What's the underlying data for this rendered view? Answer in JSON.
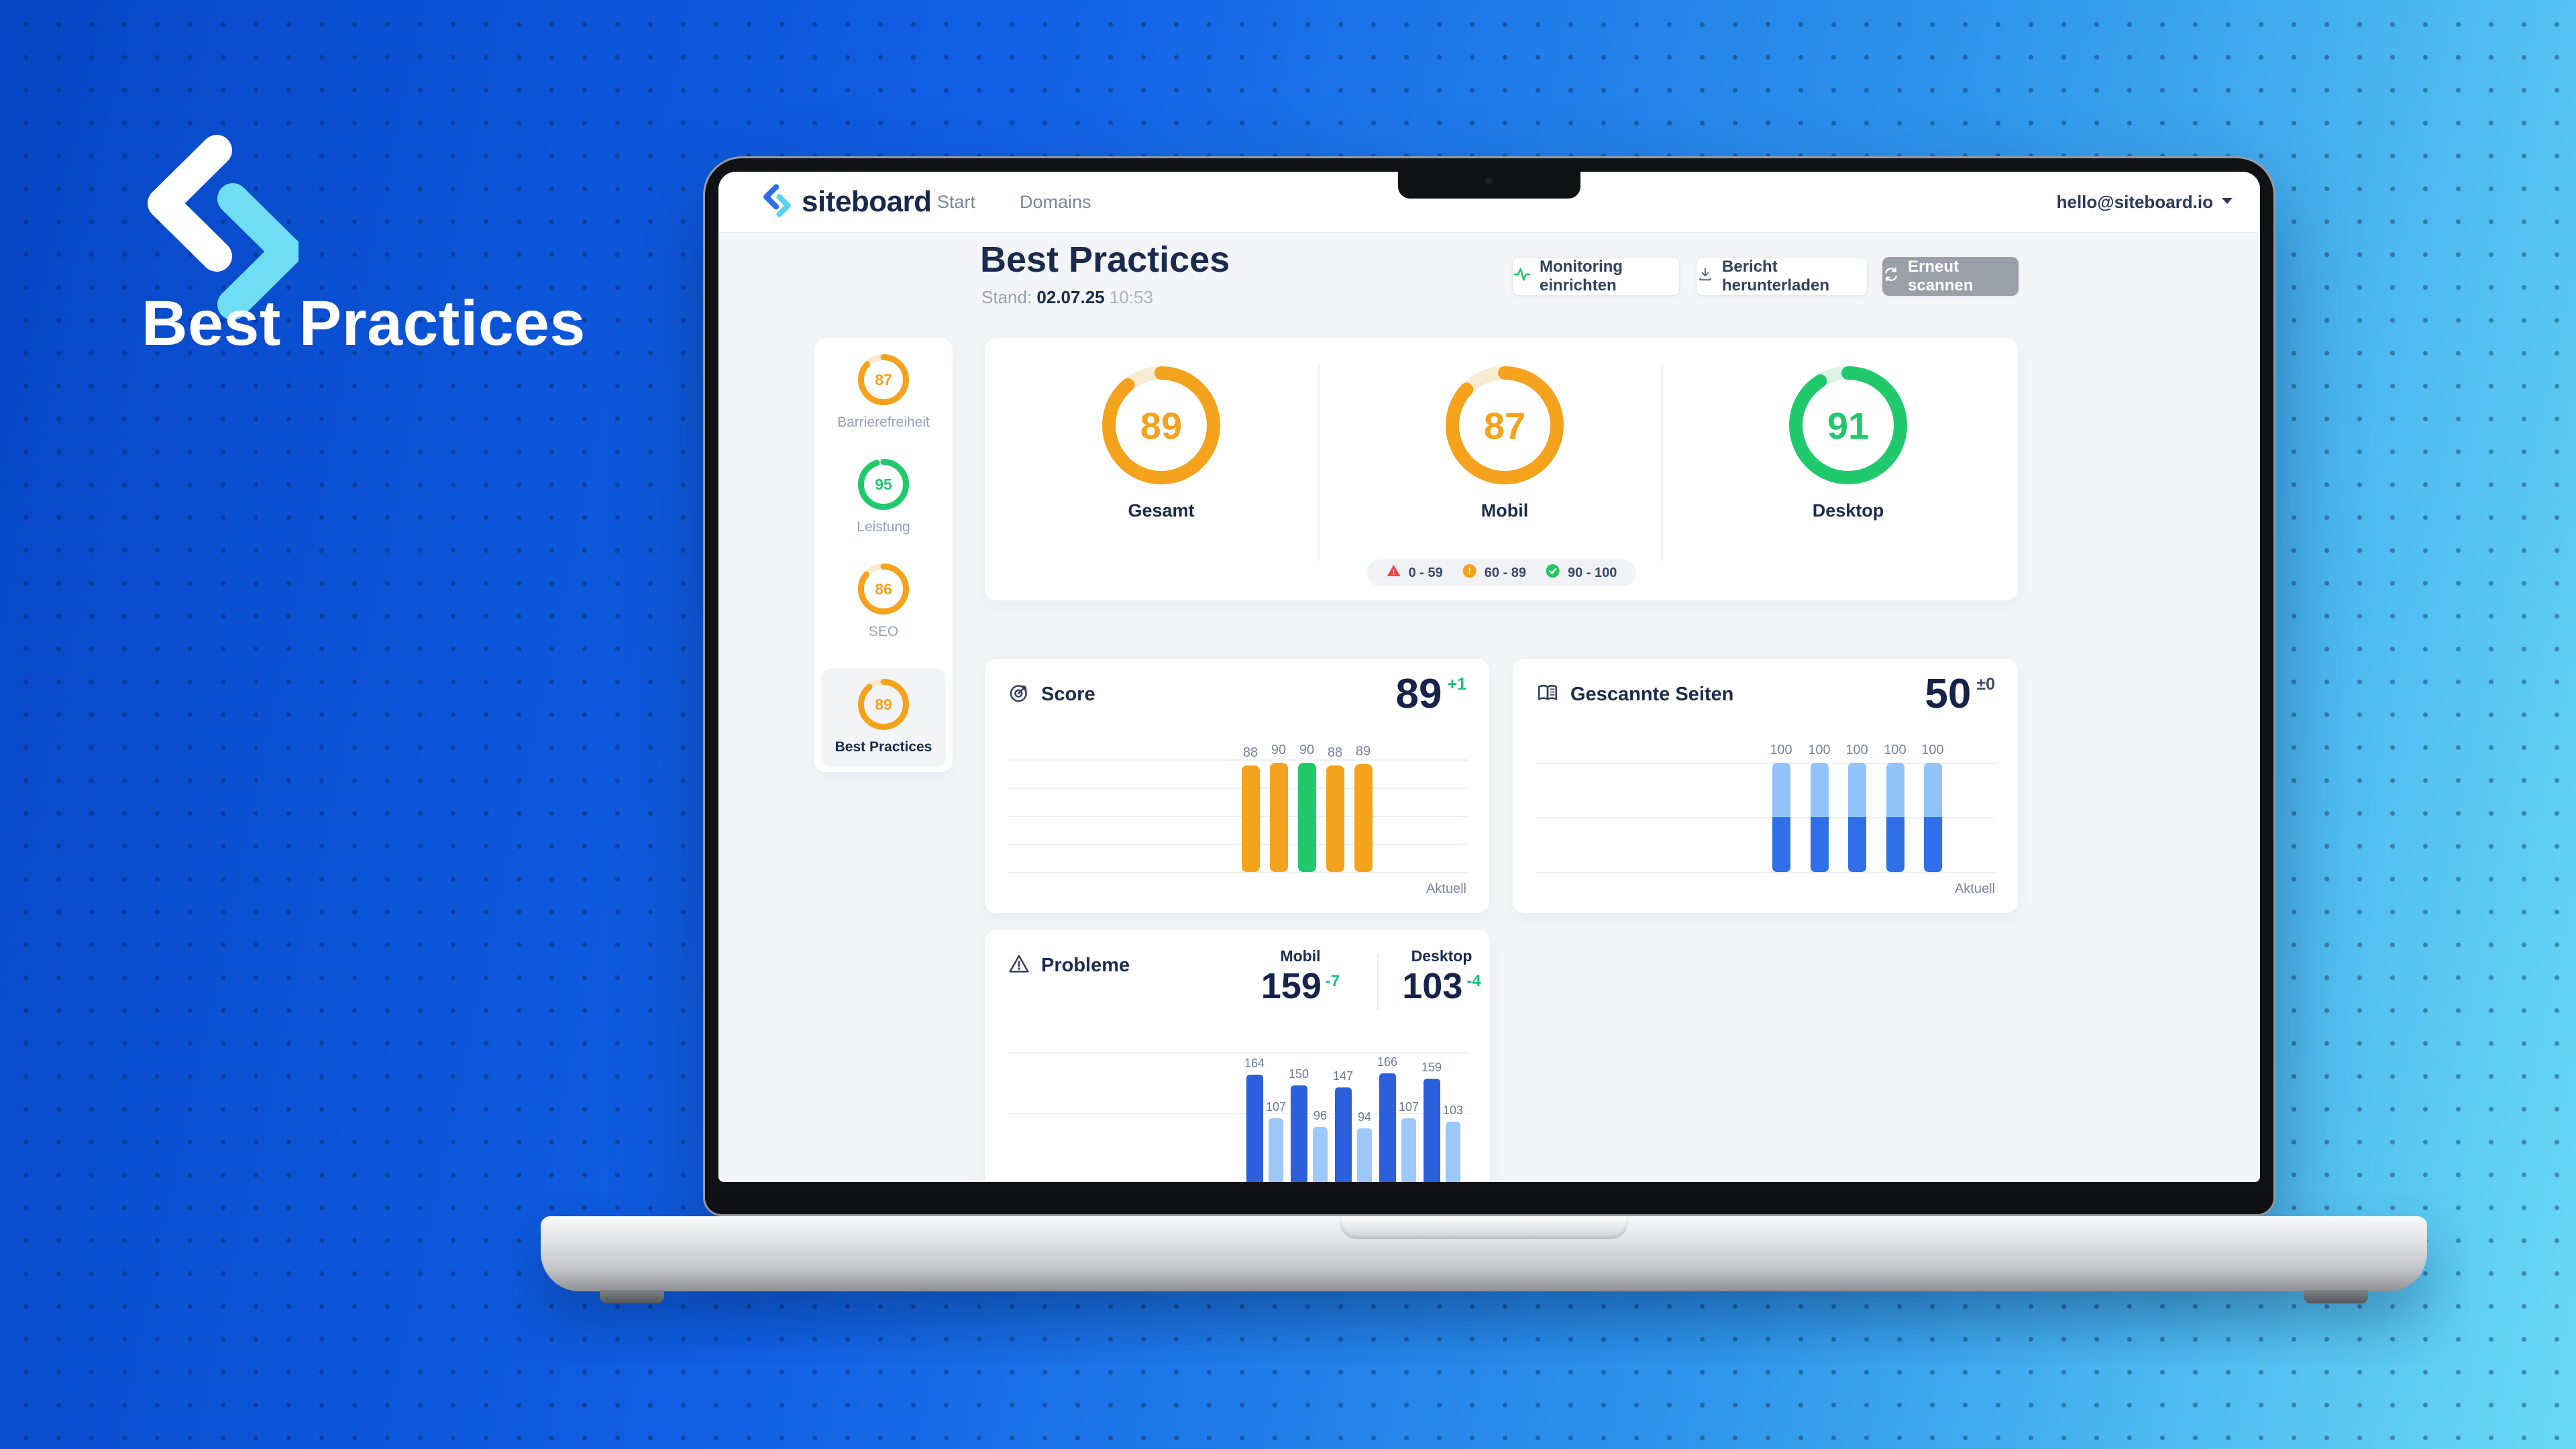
{
  "backdrop": {
    "title": "Best Practices"
  },
  "navbar": {
    "brand": "siteboard",
    "items": [
      {
        "label": "Start"
      },
      {
        "label": "Domains"
      }
    ],
    "account": {
      "email": "hello@siteboard.io"
    }
  },
  "page_header": {
    "title": "Best Practices",
    "stand_label": "Stand:",
    "date": "02.07.25",
    "time": "10:53"
  },
  "actions": {
    "monitoring": "Monitoring einrichten",
    "report": "Bericht herunterladen",
    "rescan": "Erneut scannen"
  },
  "sidebar": {
    "items": [
      {
        "label": "Barrierefreiheit",
        "value": 87,
        "color": "orange",
        "active": false
      },
      {
        "label": "Leistung",
        "value": 95,
        "color": "green",
        "active": false
      },
      {
        "label": "SEO",
        "value": 86,
        "color": "orange",
        "active": false
      },
      {
        "label": "Best Practices",
        "value": 89,
        "color": "orange",
        "active": true
      }
    ]
  },
  "overview": {
    "gauges": [
      {
        "label": "Gesamt",
        "value": 89,
        "color": "orange"
      },
      {
        "label": "Mobil",
        "value": 87,
        "color": "orange"
      },
      {
        "label": "Desktop",
        "value": 91,
        "color": "green"
      }
    ],
    "legend": [
      {
        "icon": "triangle-alert",
        "range": "0 - 59",
        "color": "#EF4444"
      },
      {
        "icon": "circle-alert",
        "range": "60 - 89",
        "color": "#F5A21D"
      },
      {
        "icon": "circle-check",
        "range": "90 - 100",
        "color": "#22C55E"
      }
    ]
  },
  "cards": {
    "score": {
      "title": "Score",
      "value": "89",
      "delta": "+1",
      "axis_note": "Aktuell"
    },
    "pages": {
      "title": "Gescannte Seiten",
      "value": "50",
      "delta": "±0",
      "axis_note": "Aktuell"
    },
    "problems": {
      "title": "Probleme",
      "mobile_label": "Mobil",
      "mobile_value": "159",
      "mobile_delta": "-7",
      "desktop_label": "Desktop",
      "desktop_value": "103",
      "desktop_delta": "-4"
    }
  },
  "chart_data": [
    {
      "id": "score_trend",
      "type": "bar",
      "title": "Score",
      "values": [
        88,
        90,
        90,
        88,
        89
      ],
      "bar_colors": [
        "orange",
        "orange",
        "green",
        "orange",
        "orange"
      ],
      "x_note": "Aktuell",
      "ylim": [
        0,
        100
      ]
    },
    {
      "id": "scanned_pages",
      "type": "stacked-bar",
      "title": "Gescannte Seiten",
      "totals": [
        100,
        100,
        100,
        100,
        100
      ],
      "series": [
        {
          "name": "upper",
          "color": "#92C4F9",
          "values": [
            45,
            45,
            45,
            45,
            45
          ]
        },
        {
          "name": "lower",
          "color": "#2F6FE8",
          "values": [
            55,
            55,
            55,
            55,
            55
          ]
        }
      ],
      "x_note": "Aktuell"
    },
    {
      "id": "problems_trend",
      "type": "grouped-bar",
      "title": "Probleme",
      "series": [
        {
          "name": "Mobil",
          "color": "#2C5FDB",
          "values": [
            164,
            150,
            147,
            166,
            159
          ]
        },
        {
          "name": "Desktop",
          "color": "#9CC9FA",
          "values": [
            107,
            96,
            94,
            107,
            103
          ]
        }
      ]
    },
    {
      "id": "overview_gauges",
      "type": "gauge",
      "scale": [
        0,
        100
      ],
      "values": [
        {
          "label": "Gesamt",
          "value": 89
        },
        {
          "label": "Mobil",
          "value": 87
        },
        {
          "label": "Desktop",
          "value": 91
        }
      ]
    },
    {
      "id": "category_gauges",
      "type": "gauge",
      "scale": [
        0,
        100
      ],
      "values": [
        {
          "label": "Barrierefreiheit",
          "value": 87
        },
        {
          "label": "Leistung",
          "value": 95
        },
        {
          "label": "SEO",
          "value": 86
        },
        {
          "label": "Best Practices",
          "value": 89
        }
      ]
    }
  ]
}
